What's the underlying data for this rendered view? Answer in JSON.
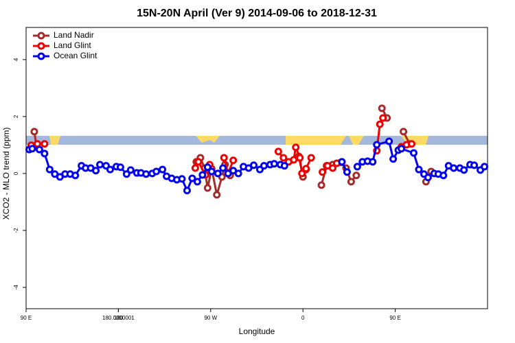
{
  "chart_data": {
    "type": "line",
    "title": "15N-20N April (Ver 9)   2014-09-06 to 2018-12-31",
    "x_label": "Longitude",
    "y_label": "XCO2 - MLO trend (ppm)",
    "xlim": [
      90,
      540
    ],
    "xticks": [
      {
        "value": 90,
        "label": "90 E"
      },
      180,
      {
        "value": 270,
        "label": "90 W"
      },
      {
        "value": 360,
        "label": "0"
      },
      {
        "value": 450,
        "label": "90 E"
      },
      180.0000001
    ],
    "ylim": [
      -4.75,
      5.13
    ],
    "yticks": [
      -4,
      -2,
      0,
      2,
      4
    ],
    "legend": "top-left",
    "series": [
      {
        "name": "Land Nadir",
        "color": "#a52a2a",
        "x": [
          98,
          100,
          null,
          256,
          260,
          264,
          267,
          271,
          276,
          281,
          284,
          289,
          null,
          356,
          360,
          363,
          null,
          378,
          383,
          389,
          397,
          402,
          407,
          412,
          null,
          437,
          442,
          null,
          458,
          464,
          null,
          480,
          485
        ],
        "values": [
          1.47,
          0.99,
          null,
          0.41,
          0.55,
          0.19,
          -0.51,
          0.17,
          -0.75,
          -0.12,
          0.31,
          -0.07,
          null,
          0.6,
          -0.12,
          0.14,
          null,
          -0.41,
          0.27,
          0.31,
          0.39,
          0.19,
          -0.29,
          -0.07,
          null,
          2.29,
          1.95,
          null,
          1.47,
          1.04,
          null,
          -0.29,
          0.07
        ]
      },
      {
        "name": "Land Glint",
        "color": "#ee0000",
        "x": [
          95,
          101,
          108,
          null,
          255,
          258,
          265,
          269,
          null,
          283,
          287,
          292,
          null,
          336,
          341,
          346,
          351,
          353,
          357,
          359,
          363,
          368,
          null,
          379,
          384,
          389,
          393,
          null,
          432,
          435,
          438,
          null,
          456,
          461,
          466
        ],
        "values": [
          0.99,
          1.04,
          1.04,
          null,
          0.19,
          0.41,
          -0.05,
          0.31,
          null,
          0.55,
          0,
          0.46,
          null,
          0.77,
          0.55,
          0.41,
          0.48,
          0.92,
          0.55,
          0,
          0.17,
          0.55,
          null,
          0.05,
          0.27,
          0.19,
          0.36,
          null,
          0.8,
          1.73,
          1.95,
          null,
          0.94,
          1.01,
          1.04
        ]
      },
      {
        "name": "Ocean Glint",
        "color": "#0000ee",
        "x": [
          93,
          96,
          103,
          108,
          113,
          118,
          123,
          128,
          133,
          138,
          144,
          148,
          153,
          158,
          162,
          168,
          172,
          178,
          182,
          188,
          192,
          198,
          202,
          207,
          213,
          217,
          223,
          227,
          232,
          237,
          242,
          247,
          252,
          257,
          262,
          267,
          271,
          277,
          282,
          287,
          292,
          297,
          302,
          307,
          312,
          318,
          322,
          328,
          332,
          338,
          342,
          null,
          398,
          403,
          null,
          413,
          418,
          423,
          428,
          432,
          444,
          448,
          453,
          456,
          468,
          473,
          478,
          482,
          488,
          492,
          497,
          502,
          507,
          513,
          517,
          523,
          527,
          533,
          537
        ],
        "values": [
          0.84,
          0.87,
          0.84,
          0.7,
          0.14,
          -0.02,
          -0.12,
          -0.02,
          -0.02,
          -0.07,
          0.27,
          0.19,
          0.19,
          0.1,
          0.31,
          0.27,
          0.14,
          0.24,
          0.22,
          -0.02,
          0.12,
          0.02,
          0.02,
          -0.02,
          0,
          0.07,
          0.14,
          -0.1,
          -0.17,
          -0.22,
          -0.19,
          -0.6,
          -0.17,
          -0.29,
          -0.05,
          0.22,
          0.07,
          0,
          0.19,
          0,
          0.1,
          0,
          0.24,
          0.19,
          0.29,
          0.14,
          0.27,
          0.31,
          0.34,
          0.31,
          0.27,
          null,
          0.41,
          0.05,
          null,
          0.24,
          0.41,
          0.43,
          0.41,
          1.01,
          1.13,
          0.51,
          0.82,
          0.87,
          0.72,
          0.14,
          -0.02,
          -0.14,
          0,
          -0.02,
          -0.07,
          0.27,
          0.19,
          0.19,
          0.12,
          0.31,
          0.29,
          0.12,
          0.24
        ]
      }
    ]
  }
}
